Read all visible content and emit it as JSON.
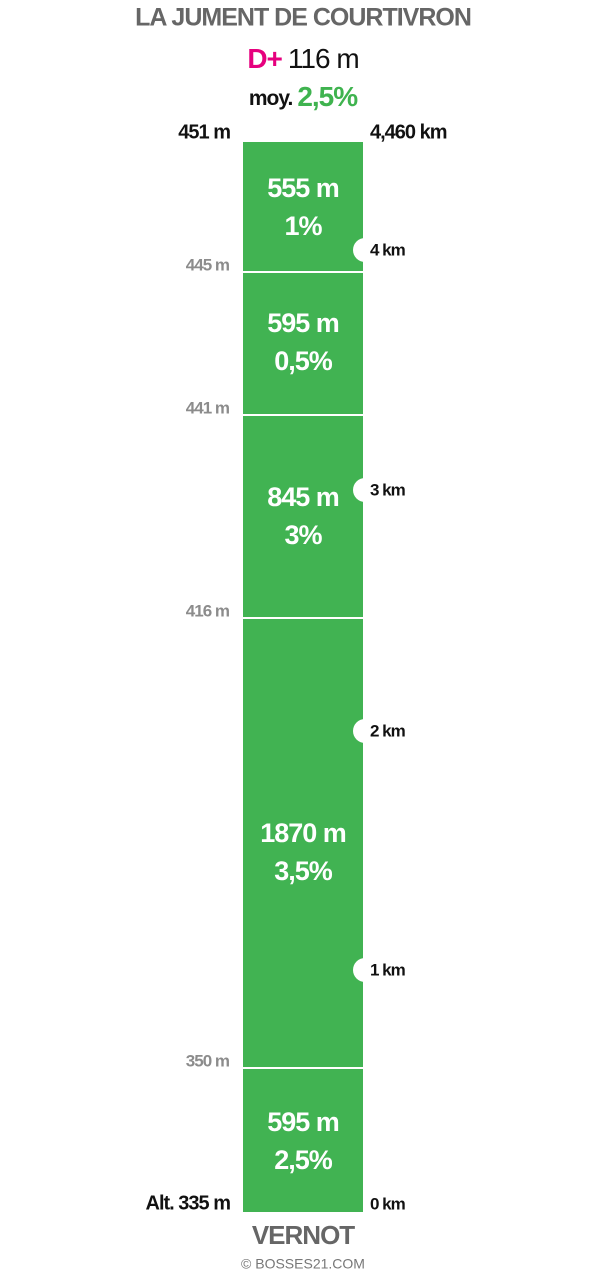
{
  "header": {
    "title": "LA JUMENT DE COURTIVRON",
    "gain_label": "D+",
    "gain_value": "116 m",
    "avg_label": "moy.",
    "avg_value": "2,5%"
  },
  "top": {
    "altitude": "451 m",
    "distance": "4,460 km"
  },
  "segments": [
    {
      "length": "555 m",
      "grade": "1%"
    },
    {
      "length": "595 m",
      "grade": "0,5%"
    },
    {
      "length": "845 m",
      "grade": "3%"
    },
    {
      "length": "1870 m",
      "grade": "3,5%"
    },
    {
      "length": "595 m",
      "grade": "2,5%"
    }
  ],
  "altitudes": [
    "445 m",
    "441 m",
    "416 m",
    "350 m"
  ],
  "km_markers": [
    "4 km",
    "3 km",
    "2 km",
    "1 km",
    "0 km"
  ],
  "bottom": {
    "altitude": "Alt. 335 m",
    "start": "VERNOT",
    "credit": "© BOSSES21.COM"
  }
}
